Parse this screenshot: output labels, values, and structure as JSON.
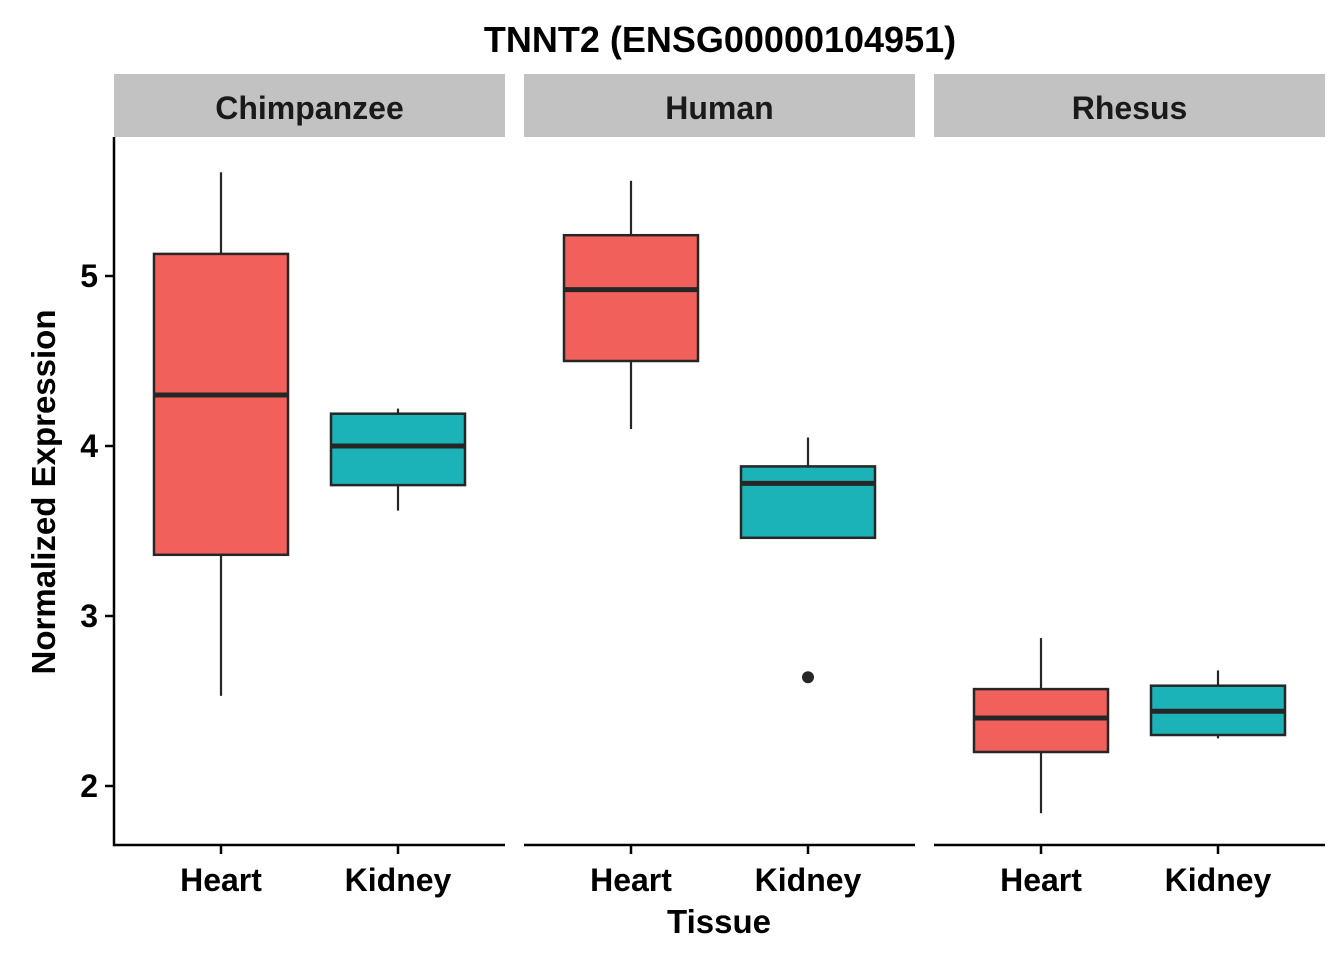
{
  "chart_data": {
    "type": "boxplot",
    "title": "TNNT2 (ENSG00000104951)",
    "xlabel": "Tissue",
    "ylabel": "Normalized Expression",
    "ylim": [
      1.65,
      5.8
    ],
    "yticks": [
      2,
      3,
      4,
      5
    ],
    "categories": [
      "Heart",
      "Kidney"
    ],
    "colors": {
      "Heart": "#F2605C",
      "Kidney": "#1BB3B8"
    },
    "panels": [
      {
        "name": "Chimpanzee",
        "boxes": [
          {
            "category": "Heart",
            "min": 2.53,
            "q1": 3.36,
            "median": 4.3,
            "q3": 5.13,
            "max": 5.61,
            "outliers": []
          },
          {
            "category": "Kidney",
            "min": 3.62,
            "q1": 3.77,
            "median": 4.0,
            "q3": 4.19,
            "max": 4.22,
            "outliers": []
          }
        ]
      },
      {
        "name": "Human",
        "boxes": [
          {
            "category": "Heart",
            "min": 4.1,
            "q1": 4.5,
            "median": 4.92,
            "q3": 5.24,
            "max": 5.56,
            "outliers": []
          },
          {
            "category": "Kidney",
            "min": 3.46,
            "q1": 3.46,
            "median": 3.78,
            "q3": 3.88,
            "max": 4.05,
            "outliers": [
              2.64
            ]
          }
        ]
      },
      {
        "name": "Rhesus",
        "boxes": [
          {
            "category": "Heart",
            "min": 1.84,
            "q1": 2.2,
            "median": 2.4,
            "q3": 2.57,
            "max": 2.87,
            "outliers": []
          },
          {
            "category": "Kidney",
            "min": 2.28,
            "q1": 2.3,
            "median": 2.44,
            "q3": 2.59,
            "max": 2.68,
            "outliers": []
          }
        ]
      }
    ]
  }
}
